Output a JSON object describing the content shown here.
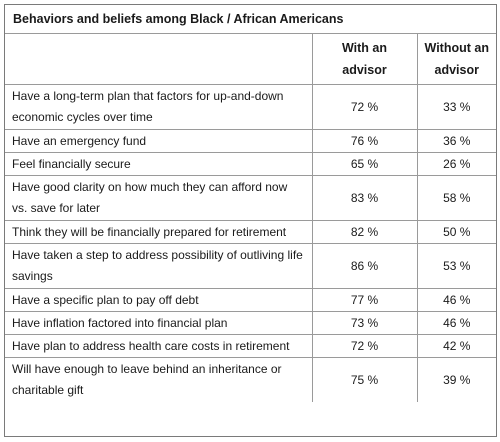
{
  "table": {
    "title": "Behaviors and beliefs among Black / African Americans",
    "columns": [
      "",
      "With an advisor",
      "Without an advisor"
    ],
    "rows": [
      {
        "label": "Have a long-term plan that factors for up-and-down economic cycles over time",
        "with": "72 %",
        "without": "33 %"
      },
      {
        "label": "Have an emergency fund",
        "with": "76 %",
        "without": "36 %"
      },
      {
        "label": "Feel financially secure",
        "with": "65 %",
        "without": "26 %"
      },
      {
        "label": "Have good clarity on how much they can afford now vs. save for later",
        "with": "83 %",
        "without": "58 %"
      },
      {
        "label": "Think they will be financially prepared for retirement",
        "with": "82 %",
        "without": "50 %"
      },
      {
        "label": "Have taken a step to address possibility of outliving life savings",
        "with": "86 %",
        "without": "53 %"
      },
      {
        "label": "Have a specific plan to pay off debt",
        "with": "77 %",
        "without": "46 %"
      },
      {
        "label": "Have inflation factored into financial plan",
        "with": "73 %",
        "without": "46 %"
      },
      {
        "label": "Have plan to address health care costs in retirement",
        "with": "72 %",
        "without": "42 %"
      },
      {
        "label": "Will have enough to leave behind an inheritance or charitable gift",
        "with": "75 %",
        "without": "39 %"
      }
    ]
  }
}
